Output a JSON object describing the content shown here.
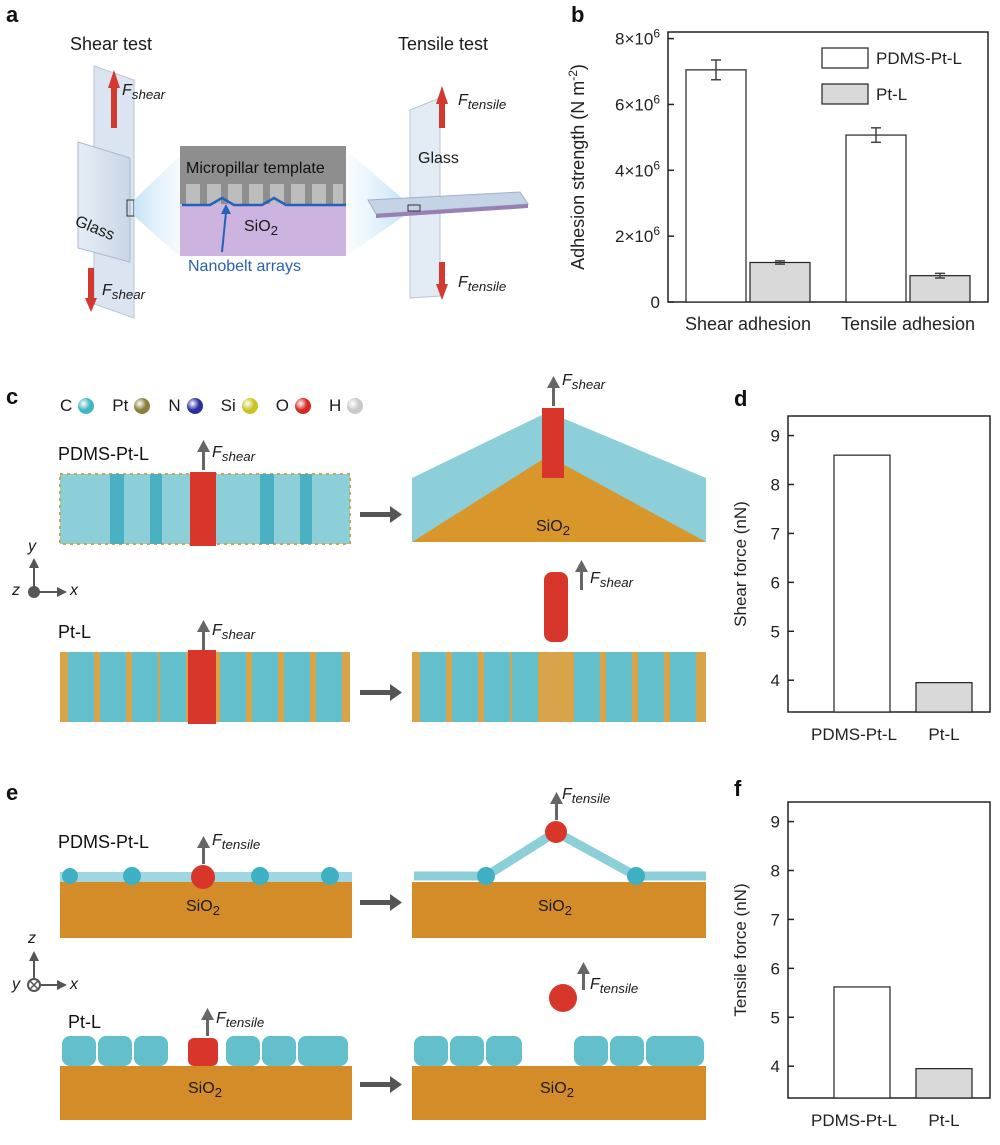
{
  "panels": {
    "a": {
      "label": "a",
      "shear_title": "Shear test",
      "tensile_title": "Tensile test",
      "f_symbol": "F",
      "shear_sub": "shear",
      "tensile_sub": "tensile",
      "glass": "Glass",
      "micropillar": "Micropillar template",
      "sio2": "SiO",
      "sio2_sub": "2",
      "nanobelt": "Nanobelt arrays"
    },
    "b": {
      "label": "b"
    },
    "c": {
      "label": "c",
      "legend": [
        {
          "symbol": "C",
          "color": "#3fb7c4"
        },
        {
          "symbol": "Pt",
          "color": "#8a7f3a"
        },
        {
          "symbol": "N",
          "color": "#2a2f9e"
        },
        {
          "symbol": "Si",
          "color": "#c9c426"
        },
        {
          "symbol": "O",
          "color": "#d62a20"
        },
        {
          "symbol": "H",
          "color": "#c9c9c9"
        }
      ],
      "row1": "PDMS-Pt-L",
      "row2": "Pt-L",
      "axis_y": "y",
      "axis_x": "x",
      "axis_z": "z",
      "f_symbol": "F",
      "f_sub": "shear",
      "sio2": "SiO",
      "sio2_sub": "2"
    },
    "d": {
      "label": "d"
    },
    "e": {
      "label": "e",
      "row1": "PDMS-Pt-L",
      "row2": "Pt-L",
      "axis_z": "z",
      "axis_x": "x",
      "axis_y": "y",
      "f_symbol": "F",
      "f_sub": "tensile",
      "sio2": "SiO",
      "sio2_sub": "2"
    },
    "f": {
      "label": "f"
    }
  },
  "chart_data": [
    {
      "id": "b",
      "type": "bar",
      "ylabel": "Adhesion strength (N m-2)",
      "ylabel_main": "Adhesion strength (N m",
      "ylabel_sup": "-2",
      "ylabel_tail": ")",
      "categories": [
        "Shear adhesion",
        "Tensile adhesion"
      ],
      "series": [
        {
          "name": "PDMS-Pt-L",
          "values": [
            7050000,
            5070000
          ],
          "errors": [
            300000,
            220000
          ],
          "color": "#ffffff"
        },
        {
          "name": "Pt-L",
          "values": [
            1200000,
            800000
          ],
          "errors": [
            50000,
            70000
          ],
          "color": "#d9d9d9"
        }
      ],
      "ylim": [
        0,
        8200000
      ],
      "yticks": [
        {
          "value": 0,
          "label": "0",
          "sup": ""
        },
        {
          "value": 2000000,
          "label": "2×10",
          "sup": "6"
        },
        {
          "value": 4000000,
          "label": "4×10",
          "sup": "6"
        },
        {
          "value": 6000000,
          "label": "6×10",
          "sup": "6"
        },
        {
          "value": 8000000,
          "label": "8×10",
          "sup": "6"
        }
      ],
      "legend": "top-right"
    },
    {
      "id": "d",
      "type": "bar",
      "ylabel": "Shear force (nN)",
      "categories": [
        "PDMS-Pt-L",
        "Pt-L"
      ],
      "values": [
        8.6,
        3.95
      ],
      "colors": [
        "#ffffff",
        "#d9d9d9"
      ],
      "ylim": [
        3.35,
        9.4
      ],
      "yticks": [
        "4",
        "5",
        "6",
        "7",
        "8",
        "9"
      ]
    },
    {
      "id": "f",
      "type": "bar",
      "ylabel": "Tensile force (nN)",
      "categories": [
        "PDMS-Pt-L",
        "Pt-L"
      ],
      "values": [
        5.62,
        3.95
      ],
      "colors": [
        "#ffffff",
        "#d9d9d9"
      ],
      "ylim": [
        3.35,
        9.4
      ],
      "yticks": [
        "4",
        "5",
        "6",
        "7",
        "8",
        "9"
      ]
    }
  ]
}
